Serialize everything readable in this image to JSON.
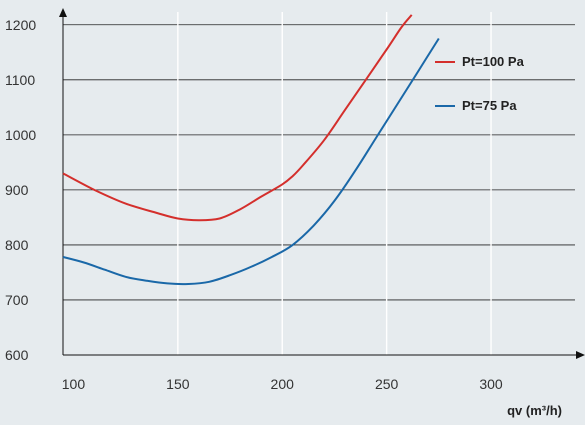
{
  "chart_data": {
    "type": "line",
    "title": "",
    "xlabel": "qv (m³/h)",
    "ylabel": "",
    "xlim": [
      95,
      345
    ],
    "ylim": [
      600,
      1245
    ],
    "x_ticks": [
      100,
      150,
      200,
      250,
      300
    ],
    "x_tick_labels": [
      "100",
      "150",
      "200",
      "250",
      "300"
    ],
    "y_ticks": [
      600,
      700,
      800,
      900,
      1000,
      1100,
      1200
    ],
    "y_tick_labels": [
      "600",
      "700",
      "800",
      "900",
      "1000",
      "1100",
      "1200"
    ],
    "grid": {
      "horizontal": true,
      "vertical": true
    },
    "legend_position": "top-right",
    "series": [
      {
        "name": "Pt=100 Pa",
        "color": "#d42f2c",
        "x": [
          95,
          110,
          125,
          140,
          150,
          160,
          170,
          180,
          190,
          200,
          205,
          210,
          220,
          230,
          240,
          250,
          257,
          262
        ],
        "y": [
          930,
          900,
          875,
          858,
          848,
          845,
          848,
          865,
          888,
          910,
          925,
          945,
          990,
          1045,
          1100,
          1155,
          1195,
          1218
        ]
      },
      {
        "name": "Pt=75 Pa",
        "color": "#1a68a8",
        "x": [
          95,
          105,
          115,
          125,
          135,
          145,
          155,
          165,
          175,
          185,
          195,
          205,
          215,
          225,
          235,
          245,
          255,
          265,
          275
        ],
        "y": [
          778,
          768,
          755,
          742,
          735,
          730,
          729,
          733,
          745,
          760,
          778,
          800,
          835,
          880,
          935,
          995,
          1055,
          1115,
          1175
        ]
      }
    ]
  }
}
